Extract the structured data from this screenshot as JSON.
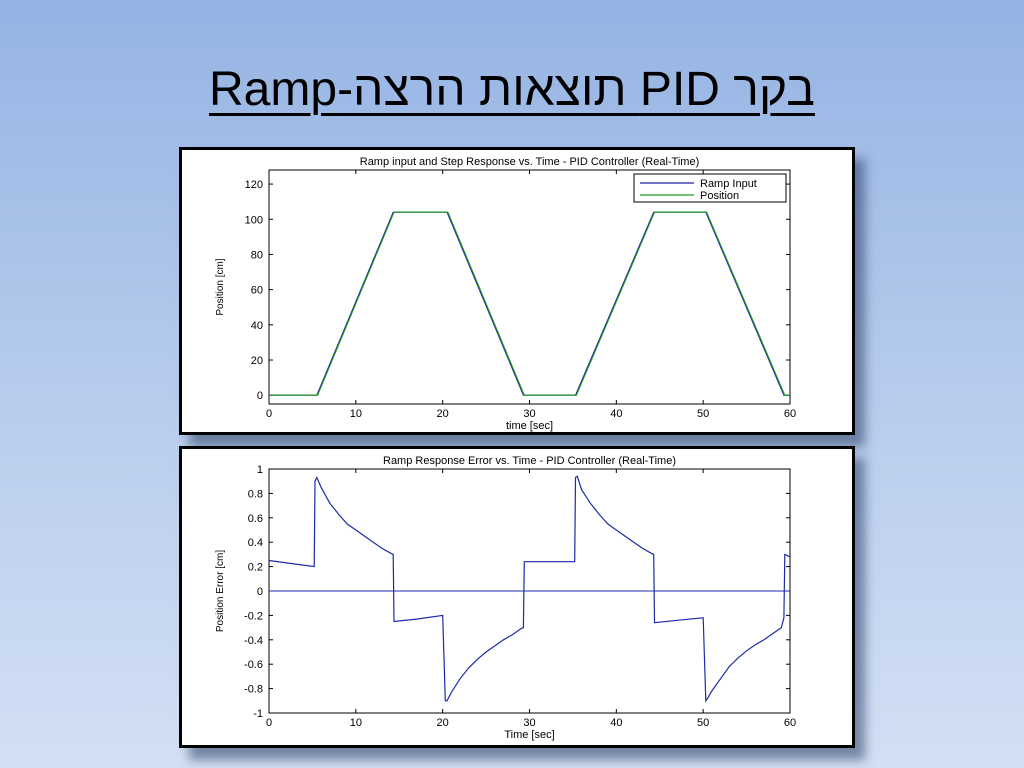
{
  "slide": {
    "title": "בקר PID תוצאות הרצה-Ramp"
  },
  "colors": {
    "ramp": "#2222aa",
    "position": "#1f9a1f",
    "error": "#1c2ba8"
  },
  "chart_data": [
    {
      "type": "line",
      "title": "Ramp input and Step Response vs. Time - PID Controller (Real-Time)",
      "xlabel": "time [sec]",
      "ylabel": "Position [cm]",
      "xlim": [
        0,
        60
      ],
      "ylim": [
        -5,
        128
      ],
      "xticks": [
        0,
        10,
        20,
        30,
        40,
        50,
        60
      ],
      "yticks": [
        0,
        20,
        40,
        60,
        80,
        100,
        120
      ],
      "grid": false,
      "legend_position": "top-right",
      "series": [
        {
          "name": "Ramp Input",
          "x": [
            0,
            5.5,
            14.3,
            20.5,
            29.3,
            35.3,
            44.3,
            50.3,
            59.3,
            60
          ],
          "y": [
            0,
            0,
            104,
            104,
            0,
            0,
            104,
            104,
            0,
            0
          ]
        },
        {
          "name": "Position",
          "x": [
            0,
            5.6,
            14.4,
            20.6,
            29.4,
            35.4,
            44.4,
            50.4,
            59.4,
            60
          ],
          "y": [
            0,
            0,
            104,
            104,
            0,
            0,
            104,
            104,
            0,
            0
          ]
        }
      ]
    },
    {
      "type": "line",
      "title": "Ramp Response Error vs. Time - PID Controller (Real-Time)",
      "xlabel": "Time [sec]",
      "ylabel": "Position Error [cm]",
      "xlim": [
        0,
        60
      ],
      "ylim": [
        -1,
        1
      ],
      "xticks": [
        0,
        10,
        20,
        30,
        40,
        50,
        60
      ],
      "yticks": [
        -1,
        -0.8,
        -0.6,
        -0.4,
        -0.2,
        0,
        0.2,
        0.4,
        0.6,
        0.8,
        1
      ],
      "ytick_labels": [
        "-1",
        "-0.8",
        "-0.6",
        "-0.4",
        "-0.2",
        "0",
        "0.2",
        "0.4",
        "0.6",
        "0.8",
        "1"
      ],
      "grid": false,
      "series": [
        {
          "x": [
            0,
            2,
            5.2,
            5.3,
            5.5,
            6,
            7,
            8,
            9,
            10,
            11,
            12,
            13,
            14,
            14.3,
            14.4,
            17,
            20,
            20.3,
            20.5,
            21,
            22,
            23,
            24,
            25,
            26,
            27,
            28,
            29,
            29.3,
            29.4,
            32,
            35.2,
            35.3,
            35.5,
            36,
            37,
            38,
            39,
            40,
            41,
            42,
            43,
            44,
            44.3,
            44.4,
            47,
            50,
            50.3,
            50.5,
            51,
            52,
            53,
            54,
            55,
            56,
            57,
            58,
            59,
            59.3,
            59.4,
            60
          ],
          "y": [
            0.25,
            0.23,
            0.2,
            0.9,
            0.93,
            0.85,
            0.72,
            0.63,
            0.55,
            0.5,
            0.45,
            0.4,
            0.35,
            0.31,
            0.3,
            -0.25,
            -0.23,
            -0.2,
            -0.9,
            -0.9,
            -0.83,
            -0.72,
            -0.63,
            -0.56,
            -0.5,
            -0.45,
            -0.4,
            -0.36,
            -0.31,
            -0.3,
            0.24,
            0.24,
            0.24,
            0.93,
            0.94,
            0.83,
            0.72,
            0.63,
            0.55,
            0.5,
            0.45,
            0.4,
            0.35,
            0.31,
            0.3,
            -0.26,
            -0.24,
            -0.22,
            -0.9,
            -0.88,
            -0.82,
            -0.72,
            -0.62,
            -0.55,
            -0.49,
            -0.44,
            -0.4,
            -0.35,
            -0.3,
            -0.22,
            0.3,
            0.28
          ]
        },
        {
          "x": [
            0,
            60
          ],
          "y": [
            0,
            0
          ]
        }
      ]
    }
  ]
}
